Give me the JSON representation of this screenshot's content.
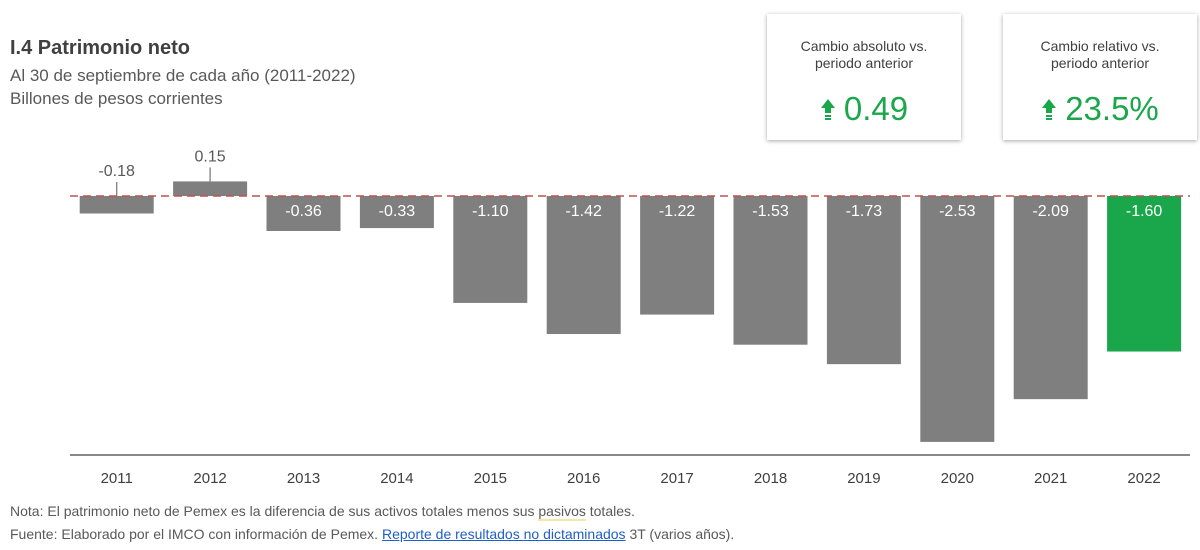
{
  "header": {
    "title": "I.4 Patrimonio neto",
    "subtitle1": "Al 30 de septiembre de cada año (2011-2022)",
    "subtitle2": "Billones de pesos corrientes"
  },
  "kpis": [
    {
      "label": "Cambio absoluto vs.\nperiodo anterior",
      "value": "0.49",
      "icon": "up-arrow-icon",
      "color": "#1aa64a"
    },
    {
      "label": "Cambio relativo vs.\nperiodo anterior",
      "value": "23.5%",
      "icon": "up-arrow-icon",
      "color": "#1aa64a"
    }
  ],
  "chart_data": {
    "type": "bar",
    "title": "I.4 Patrimonio neto",
    "xlabel": "",
    "ylabel": "Billones de pesos corrientes",
    "categories": [
      "2011",
      "2012",
      "2013",
      "2014",
      "2015",
      "2016",
      "2017",
      "2018",
      "2019",
      "2020",
      "2021",
      "2022"
    ],
    "values": [
      -0.18,
      0.15,
      -0.36,
      -0.33,
      -1.1,
      -1.42,
      -1.22,
      -1.53,
      -1.73,
      -2.53,
      -2.09,
      -1.6
    ],
    "data_labels": [
      "-0.18",
      "0.15",
      "-0.36",
      "-0.33",
      "-1.10",
      "-1.42",
      "-1.22",
      "-1.53",
      "-1.73",
      "-2.53",
      "-2.09",
      "-1.60"
    ],
    "highlight_category": "2022",
    "bar_color": "#7f7f7f",
    "highlight_color": "#1aa64a",
    "zero_line_color": "#c0504d",
    "ylim": [
      -2.6,
      0.2
    ],
    "grid": false
  },
  "footer": {
    "nota_pre": "Nota: El patrimonio neto de Pemex es la diferencia de sus activos totales menos sus ",
    "nota_hl": "pasivos",
    "nota_post": " totales.",
    "fuente_pre": "Fuente: Elaborado por el IMCO con información de Pemex. ",
    "fuente_link": "Reporte de resultados no dictaminados",
    "fuente_post": " 3T (varios años)."
  }
}
